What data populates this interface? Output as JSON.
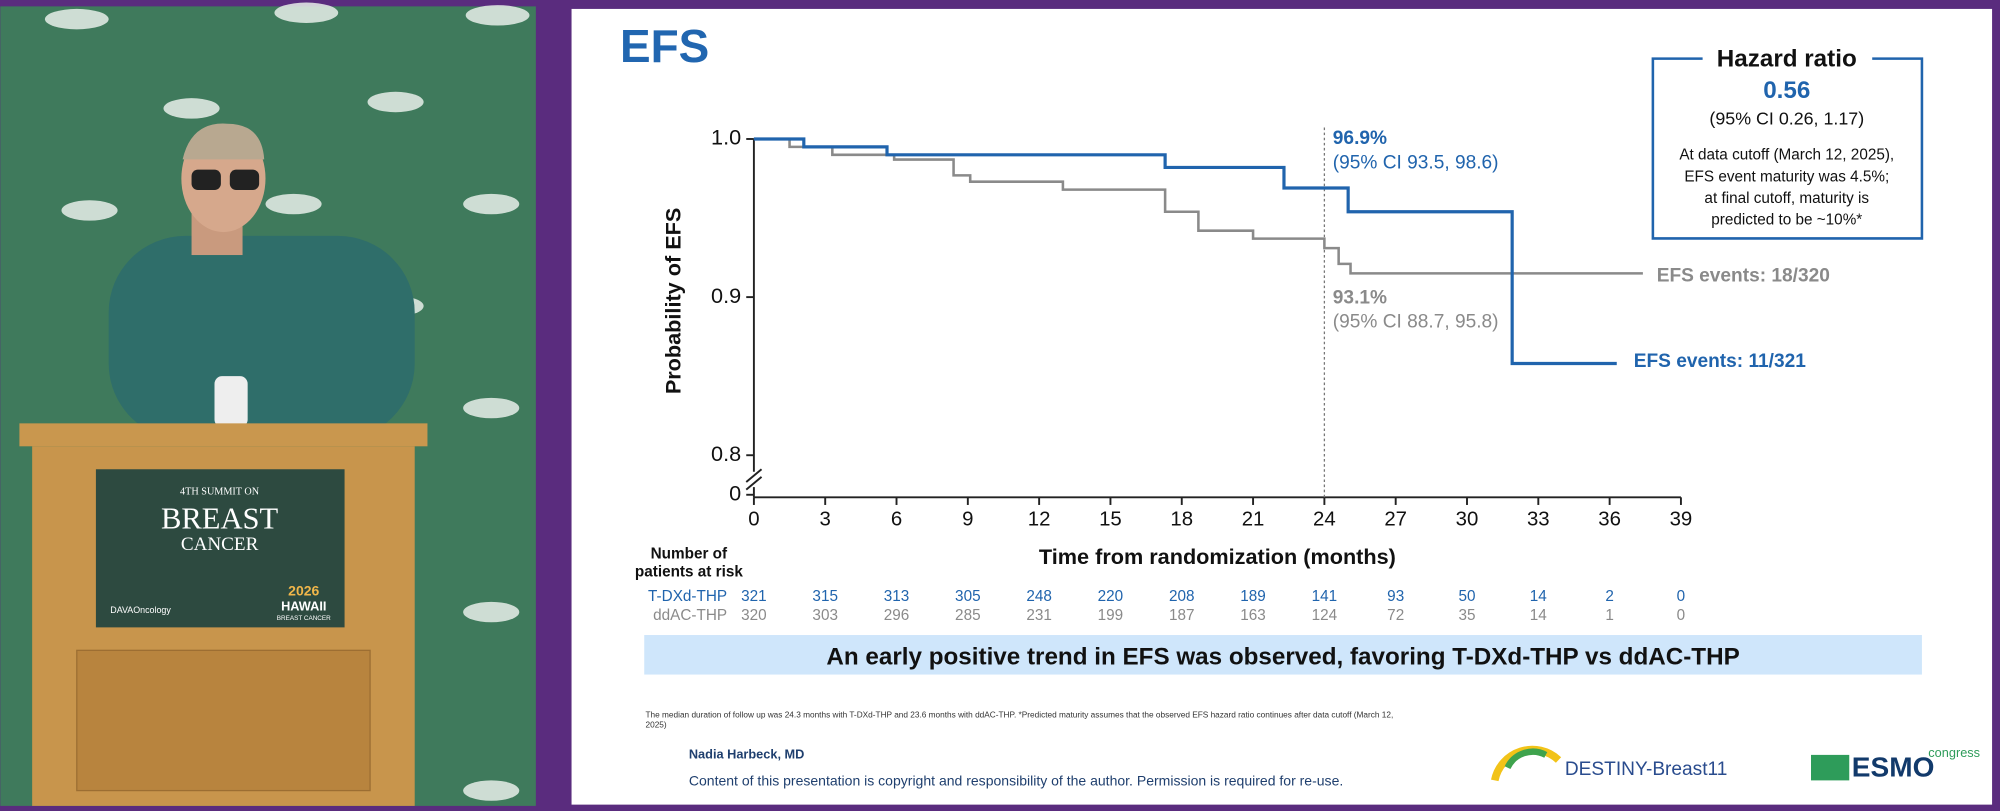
{
  "chart_data": {
    "type": "km",
    "title": "EFS",
    "xlabel": "Time from randomization (months)",
    "ylabel": "Probability of EFS",
    "xlim": [
      0,
      39
    ],
    "xticks": [
      0,
      3,
      6,
      9,
      12,
      15,
      18,
      21,
      24,
      27,
      30,
      33,
      36,
      39
    ],
    "ylim": [
      0.775,
      1.0
    ],
    "yticks": [
      {
        "value": 0.8,
        "label": "0.8"
      },
      {
        "value": 0.9,
        "label": "0.9"
      },
      {
        "value": 1.0,
        "label": "1.0"
      }
    ],
    "ybreak_tick": 0,
    "vline": 24,
    "series": [
      {
        "name": "T-DXd-THP",
        "color": "#2064ad",
        "x": [
          0,
          2.1,
          5.6,
          17.3,
          22.3,
          25.0,
          31.9,
          36.3
        ],
        "values": [
          1.0,
          0.995,
          0.99,
          0.982,
          0.969,
          0.954,
          0.858,
          0.858
        ],
        "at_risk": [
          321,
          315,
          313,
          305,
          248,
          220,
          208,
          189,
          141,
          93,
          50,
          14,
          2,
          0
        ]
      },
      {
        "name": "ddAC-THP",
        "color": "#8a8a8a",
        "x": [
          0,
          1.5,
          3.3,
          5.9,
          8.4,
          9.1,
          13.0,
          17.3,
          18.7,
          21.0,
          24.0,
          24.6,
          25.1,
          37.4
        ],
        "values": [
          1.0,
          0.995,
          0.99,
          0.987,
          0.977,
          0.973,
          0.968,
          0.954,
          0.942,
          0.937,
          0.931,
          0.921,
          0.915,
          0.915
        ],
        "at_risk": [
          320,
          303,
          296,
          285,
          231,
          199,
          187,
          163,
          124,
          72,
          35,
          14,
          1,
          0
        ]
      }
    ],
    "annotations": [
      "96.9%",
      "(95% CI 93.5, 98.6)",
      "93.1%",
      "(95% CI 88.7, 95.8)",
      "EFS events: 18/320",
      "EFS events: 11/321"
    ],
    "risk_title": [
      "Number of",
      "patients at risk"
    ]
  },
  "hazard_box": {
    "title": "Hazard ratio",
    "value": "0.56",
    "ci": "(95% CI 0.26, 1.17)",
    "note": [
      "At data cutoff (March 12, 2025),",
      "EFS event maturity was 4.5%;",
      "at final cutoff, maturity is",
      "predicted to be ~10%*"
    ]
  },
  "banner": "An early positive trend in EFS was observed, favoring T-DXd-THP vs ddAC-THP",
  "footnote": [
    "The median duration of follow up was 24.3 months with T-DXd-THP and 23.6 months with ddAC-THP. *Predicted maturity assumes that the observed EFS hazard ratio continues after data cutoff (March 12,",
    "2025)"
  ],
  "author": "Nadia Harbeck, MD",
  "copyright": "Content of this presentation is copyright and responsibility of the author. Permission is required for re-use.",
  "trial_logo": "DESTINY-Breast11",
  "esmo_logo": {
    "name": "ESMO",
    "tag": "congress"
  },
  "podium_sign": {
    "line1": "4TH SUMMIT ON",
    "line2": "BREAST",
    "line3": "CANCER",
    "org": "DAVAOncology",
    "year": "2026",
    "place": "HAWAII",
    "sub": "BREAST CANCER"
  }
}
